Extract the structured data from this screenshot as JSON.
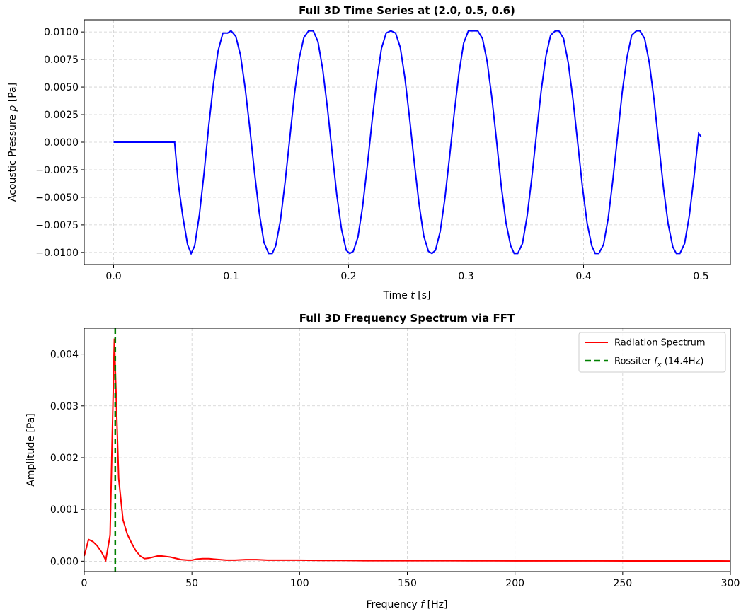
{
  "chart_data": [
    {
      "type": "line",
      "title": "Full 3D Time Series at (2.0, 0.5, 0.6)",
      "xlabel": "Time t [s]",
      "xlabel_prefix": "Time ",
      "xlabel_var": "t",
      "xlabel_suffix": " [s]",
      "ylabel": "Acoustic Pressure p [Pa]",
      "ylabel_prefix": "Acoustic Pressure ",
      "ylabel_var": "p",
      "ylabel_suffix": " [Pa]",
      "xlim": [
        -0.025,
        0.525
      ],
      "ylim": [
        -0.0111,
        0.0111
      ],
      "xticks": [
        0.0,
        0.1,
        0.2,
        0.3,
        0.4,
        0.5
      ],
      "xtick_labels": [
        "0.0",
        "0.1",
        "0.2",
        "0.3",
        "0.4",
        "0.5"
      ],
      "yticks": [
        -0.01,
        -0.0075,
        -0.005,
        -0.0025,
        0.0,
        0.0025,
        0.005,
        0.0075,
        0.01
      ],
      "ytick_labels": [
        "−0.0100",
        "−0.0075",
        "−0.0050",
        "−0.0025",
        "0.0000",
        "0.0025",
        "0.0050",
        "0.0075",
        "0.0100"
      ],
      "grid": true,
      "series": [
        {
          "color": "#0000ff",
          "x": [
            0.0,
            0.052,
            0.052,
            0.055,
            0.059,
            0.063,
            0.066,
            0.069,
            0.073,
            0.077,
            0.081,
            0.085,
            0.089,
            0.093,
            0.097,
            0.1,
            0.104,
            0.108,
            0.112,
            0.116,
            0.12,
            0.124,
            0.128,
            0.132,
            0.135,
            0.138,
            0.142,
            0.146,
            0.15,
            0.154,
            0.158,
            0.162,
            0.166,
            0.17,
            0.174,
            0.178,
            0.182,
            0.186,
            0.19,
            0.194,
            0.198,
            0.201,
            0.204,
            0.208,
            0.212,
            0.216,
            0.22,
            0.224,
            0.228,
            0.232,
            0.236,
            0.24,
            0.244,
            0.248,
            0.252,
            0.256,
            0.26,
            0.264,
            0.268,
            0.271,
            0.274,
            0.278,
            0.282,
            0.286,
            0.29,
            0.294,
            0.298,
            0.302,
            0.306,
            0.31,
            0.314,
            0.318,
            0.322,
            0.326,
            0.33,
            0.334,
            0.338,
            0.341,
            0.344,
            0.348,
            0.352,
            0.356,
            0.36,
            0.364,
            0.368,
            0.372,
            0.376,
            0.379,
            0.383,
            0.387,
            0.391,
            0.395,
            0.399,
            0.403,
            0.407,
            0.41,
            0.413,
            0.417,
            0.421,
            0.425,
            0.429,
            0.433,
            0.437,
            0.441,
            0.445,
            0.448,
            0.452,
            0.456,
            0.46,
            0.464,
            0.468,
            0.472,
            0.476,
            0.479,
            0.482,
            0.486,
            0.49,
            0.494,
            0.498,
            0.5
          ],
          "y": [
            0.0,
            0.0,
            -0.0001,
            -0.0037,
            -0.0068,
            -0.0093,
            -0.0101,
            -0.0094,
            -0.0066,
            -0.0028,
            0.0015,
            0.0053,
            0.0083,
            0.0099,
            0.0099,
            0.0101,
            0.0096,
            0.0079,
            0.0049,
            0.0012,
            -0.0028,
            -0.0064,
            -0.0091,
            -0.0101,
            -0.0101,
            -0.0094,
            -0.0071,
            -0.0036,
            0.0004,
            0.0044,
            0.0076,
            0.0095,
            0.0101,
            0.0101,
            0.0091,
            0.0066,
            0.0031,
            -0.0009,
            -0.0048,
            -0.0079,
            -0.0098,
            -0.0101,
            -0.0099,
            -0.0086,
            -0.0058,
            -0.0021,
            0.0019,
            0.0056,
            0.0085,
            0.0099,
            0.0101,
            0.0099,
            0.0086,
            0.0058,
            0.0021,
            -0.0019,
            -0.0056,
            -0.0085,
            -0.0099,
            -0.0101,
            -0.0098,
            -0.0081,
            -0.0051,
            -0.0013,
            0.0027,
            0.0063,
            0.009,
            0.0101,
            0.0101,
            0.0101,
            0.0094,
            0.0073,
            0.004,
            0.0001,
            -0.004,
            -0.0073,
            -0.0094,
            -0.0101,
            -0.0101,
            -0.0092,
            -0.0067,
            -0.0032,
            0.0008,
            0.0047,
            0.0078,
            0.0097,
            0.0101,
            0.0101,
            0.0094,
            0.0072,
            0.0039,
            0.0,
            -0.004,
            -0.0073,
            -0.0094,
            -0.0101,
            -0.0101,
            -0.0093,
            -0.0069,
            -0.0034,
            0.0006,
            0.0046,
            0.0077,
            0.0097,
            0.0101,
            0.0101,
            0.0094,
            0.0072,
            0.0039,
            -0.0001,
            -0.0041,
            -0.0074,
            -0.0095,
            -0.0101,
            -0.0101,
            -0.0092,
            -0.0067,
            -0.0032,
            0.0008,
            0.0005
          ]
        }
      ]
    },
    {
      "type": "line",
      "title": "Full 3D Frequency Spectrum via FFT",
      "xlabel": "Frequency f [Hz]",
      "xlabel_prefix": "Frequency ",
      "xlabel_var": "f",
      "xlabel_suffix": " [Hz]",
      "ylabel": "Amplitude [Pa]",
      "xlim": [
        0,
        300
      ],
      "ylim": [
        -0.0002,
        0.0045
      ],
      "xticks": [
        0,
        50,
        100,
        150,
        200,
        250,
        300
      ],
      "xtick_labels": [
        "0",
        "50",
        "100",
        "150",
        "200",
        "250",
        "300"
      ],
      "yticks": [
        0.0,
        0.001,
        0.002,
        0.003,
        0.004
      ],
      "ytick_labels": [
        "0.000",
        "0.001",
        "0.002",
        "0.003",
        "0.004"
      ],
      "grid": true,
      "legend_position": "top-right",
      "series": [
        {
          "name": "Radiation Spectrum",
          "color": "#ff0000",
          "x": [
            0,
            2,
            4,
            6,
            8,
            10,
            12,
            14,
            16,
            18,
            20,
            22,
            24,
            26,
            28,
            30,
            32,
            34,
            36,
            38,
            40,
            42,
            45,
            48,
            50,
            52,
            55,
            58,
            60,
            63,
            66,
            70,
            75,
            80,
            85,
            90,
            95,
            100,
            110,
            120,
            130,
            140,
            150,
            160,
            170,
            180,
            190,
            200,
            220,
            240,
            260,
            280,
            300
          ],
          "y": [
            0.0001,
            0.00042,
            0.00038,
            0.0003,
            0.00018,
            2e-05,
            0.0005,
            0.0043,
            0.0016,
            0.0008,
            0.00052,
            0.00035,
            0.0002,
            0.0001,
            5e-05,
            6e-05,
            8e-05,
            0.0001,
            0.0001,
            9e-05,
            8e-05,
            6e-05,
            3e-05,
            2e-05,
            2e-05,
            4e-05,
            5e-05,
            5e-05,
            4e-05,
            3e-05,
            2e-05,
            2e-05,
            3e-05,
            3e-05,
            2e-05,
            2e-05,
            2e-05,
            2e-05,
            1.5e-05,
            1.5e-05,
            1e-05,
            1e-05,
            1e-05,
            1e-05,
            1e-05,
            8e-06,
            8e-06,
            7e-06,
            6e-06,
            6e-06,
            5e-06,
            5e-06,
            4e-06
          ]
        },
        {
          "name": "Rossiter f_x (14.4Hz)",
          "legend_prefix": "Rossiter ",
          "legend_var": "f",
          "legend_sub": "x",
          "legend_suffix": " (14.4Hz)",
          "color": "#008000",
          "style": "dashed",
          "vline_x": 14.4
        }
      ]
    }
  ]
}
